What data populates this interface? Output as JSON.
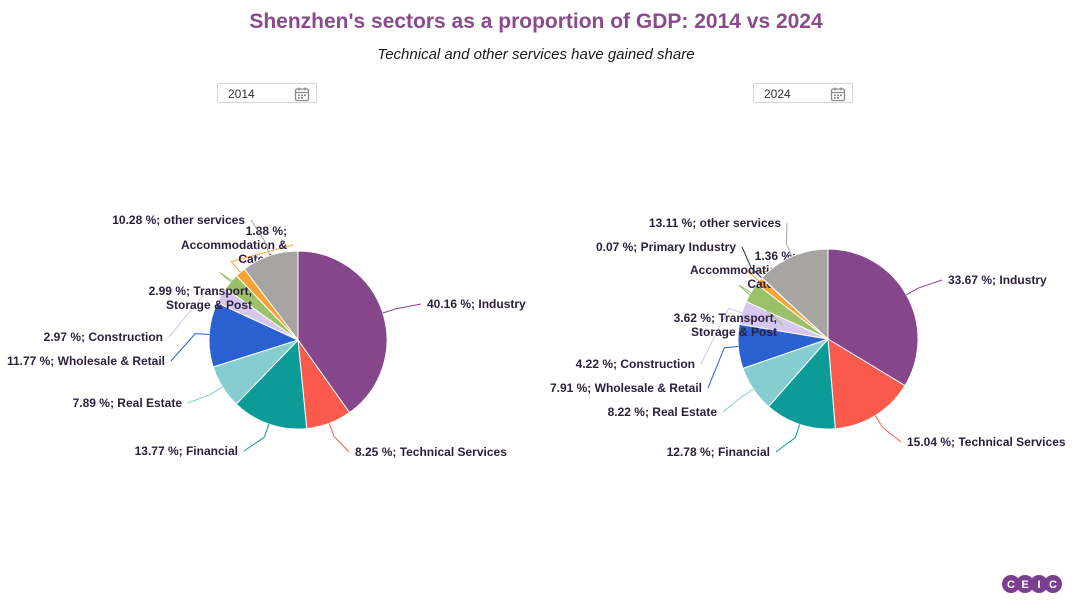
{
  "header": {
    "title": "Shenzhen's sectors as a proportion of GDP: 2014 vs 2024",
    "subtitle": "Technical and other services have gained share"
  },
  "date_pickers": [
    {
      "value": "2014"
    },
    {
      "value": "2024"
    }
  ],
  "brand": {
    "logo_letters": [
      "C",
      "E",
      "I",
      "C"
    ],
    "color": "#7b3f8f"
  },
  "chart_data": [
    {
      "type": "pie",
      "slices": [
        {
          "name": "Industry",
          "value": 40.16,
          "color": "#86468c",
          "label": "40.16 %; Industry"
        },
        {
          "name": "Technical Services",
          "value": 8.25,
          "color": "#fa5a4c",
          "label": "8.25 %; Technical Services"
        },
        {
          "name": "Financial",
          "value": 13.77,
          "color": "#0d9b98",
          "label": "13.77 %; Financial"
        },
        {
          "name": "Real Estate",
          "value": 7.89,
          "color": "#85cdd0",
          "label": "7.89 %; Real Estate"
        },
        {
          "name": "Wholesale & Retail",
          "value": 11.77,
          "color": "#2a60d0",
          "label": "11.77 %; Wholesale & Retail"
        },
        {
          "name": "Construction",
          "value": 2.97,
          "color": "#d7c6ef",
          "label": "2.97 %; Construction"
        },
        {
          "name": "Transport, Storage & Post",
          "value": 2.99,
          "color": "#9ac169",
          "label": "2.99 %; Transport, Storage & Post"
        },
        {
          "name": "Accommodation & Catering",
          "value": 1.88,
          "color": "#f7a233",
          "label": "1.88 %; Accommodation & Catering"
        },
        {
          "name": "other services",
          "value": 10.28,
          "color": "#a7a5a4",
          "label": "10.28 %; other services"
        }
      ]
    },
    {
      "type": "pie",
      "slices": [
        {
          "name": "Industry",
          "value": 33.67,
          "color": "#86468c",
          "label": "33.67 %; Industry"
        },
        {
          "name": "Technical Services",
          "value": 15.04,
          "color": "#fa5a4c",
          "label": "15.04 %; Technical Services"
        },
        {
          "name": "Financial",
          "value": 12.78,
          "color": "#0d9b98",
          "label": "12.78 %; Financial"
        },
        {
          "name": "Real Estate",
          "value": 8.22,
          "color": "#85cdd0",
          "label": "8.22 %; Real Estate"
        },
        {
          "name": "Wholesale & Retail",
          "value": 7.91,
          "color": "#2a60d0",
          "label": "7.91 %; Wholesale & Retail"
        },
        {
          "name": "Construction",
          "value": 4.22,
          "color": "#d7c6ef",
          "label": "4.22 %; Construction"
        },
        {
          "name": "Transport, Storage & Post",
          "value": 3.62,
          "color": "#9ac169",
          "label": "3.62 %; Transport, Storage & Post"
        },
        {
          "name": "Accommodation & Catering",
          "value": 1.36,
          "color": "#f7a233",
          "label": "1.36 %; Accommodation & Catering"
        },
        {
          "name": "Primary Industry",
          "value": 0.07,
          "color": "#1f2a60",
          "label": "0.07 %; Primary Industry"
        },
        {
          "name": "other services",
          "value": 13.11,
          "color": "#a7a5a4",
          "label": "13.11 %; other services"
        }
      ]
    }
  ]
}
